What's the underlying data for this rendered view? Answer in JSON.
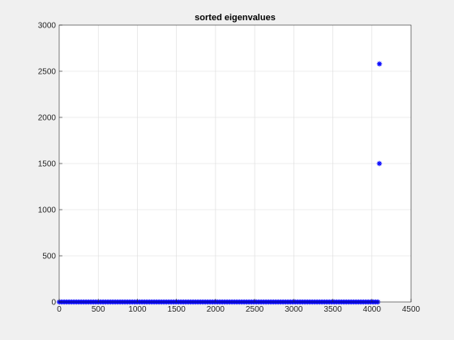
{
  "chart_data": {
    "type": "scatter",
    "title": "sorted eigenvalues",
    "xlabel": "",
    "ylabel": "",
    "xlim": [
      0,
      4500
    ],
    "ylim": [
      0,
      3000
    ],
    "xticks": [
      0,
      500,
      1000,
      1500,
      2000,
      2500,
      3000,
      3500,
      4000,
      4500
    ],
    "yticks": [
      0,
      500,
      1000,
      1500,
      2000,
      2500,
      3000
    ],
    "grid": true,
    "marker": "asterisk",
    "series": [
      {
        "color": "#0000ff",
        "dense_baseline": {
          "x_start": 1,
          "x_end": 4094,
          "y": 0
        },
        "points": [
          {
            "x": 4095,
            "y": 1500
          },
          {
            "x": 4096,
            "y": 2580
          }
        ]
      }
    ]
  }
}
